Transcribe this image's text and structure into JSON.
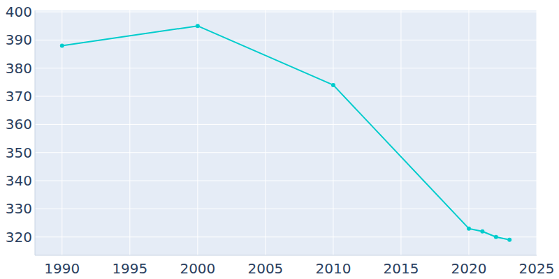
{
  "chart_data": {
    "type": "line",
    "x": [
      1990,
      2000,
      2010,
      2020,
      2021,
      2022,
      2023
    ],
    "values": [
      388,
      395,
      374,
      323,
      322,
      320,
      319
    ],
    "color": "#00cccc",
    "marker": "circle",
    "grid": true,
    "xlim": [
      1988,
      2025
    ],
    "xticks": [
      1990,
      1995,
      2000,
      2005,
      2010,
      2015,
      2020,
      2025
    ],
    "ylim": [
      313.5,
      400.5
    ],
    "yticks": [
      320,
      330,
      340,
      350,
      360,
      370,
      380,
      390,
      400
    ]
  }
}
